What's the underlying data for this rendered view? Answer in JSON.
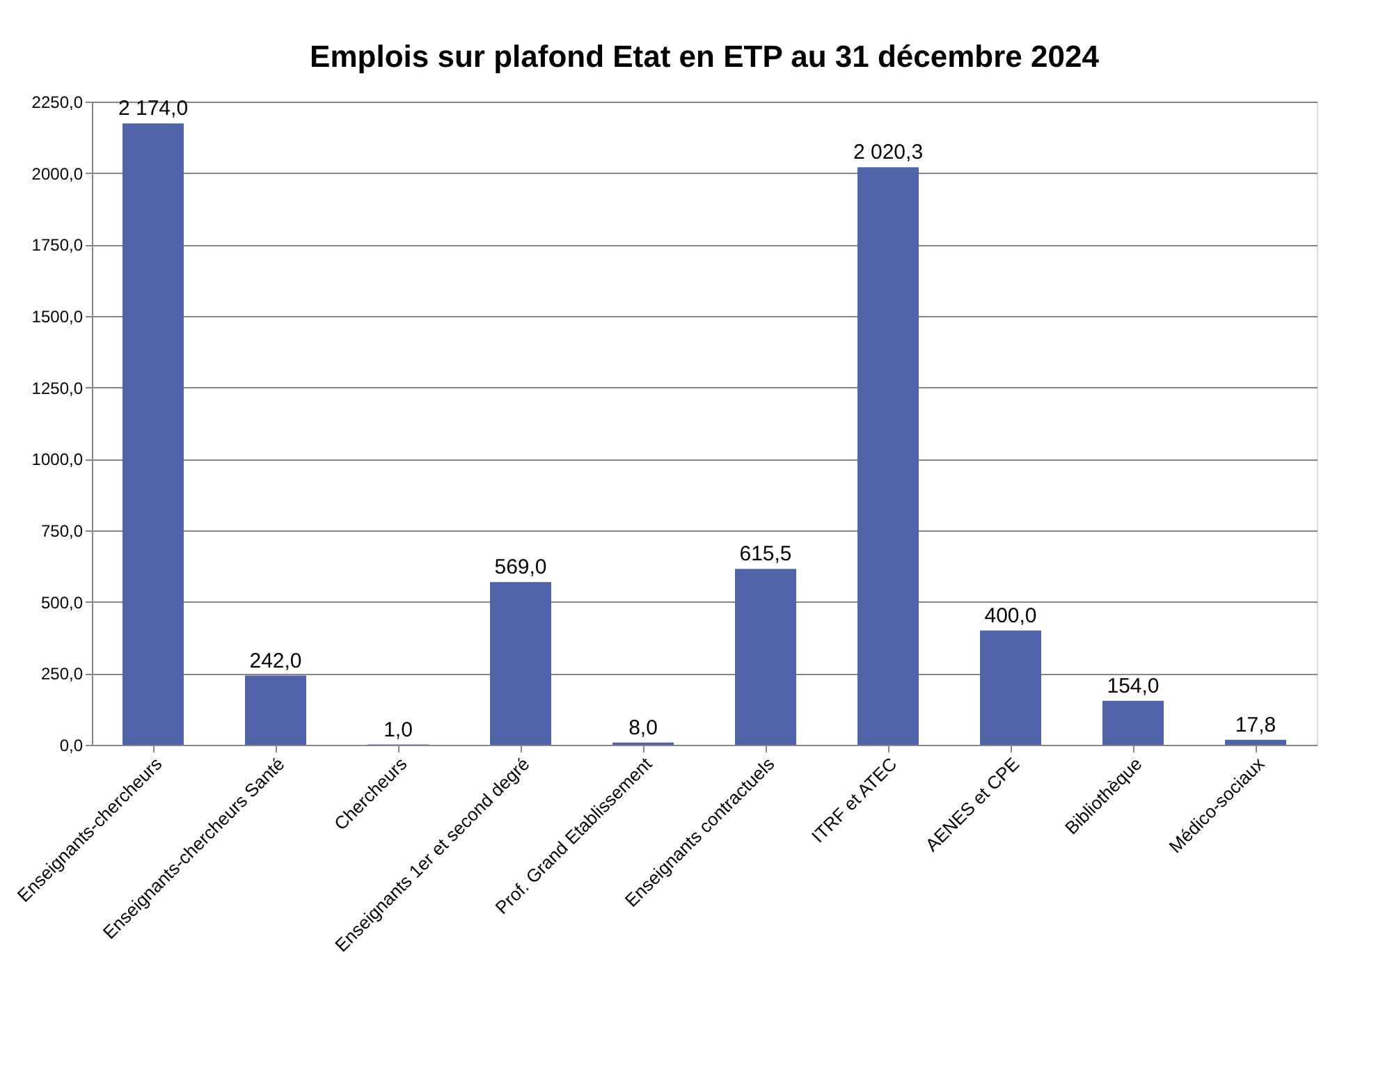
{
  "chart_data": {
    "type": "bar",
    "title": "Emplois sur plafond Etat en ETP au 31 décembre 2024",
    "categories": [
      "Enseignants-chercheurs",
      "Enseignants-chercheurs Santé",
      "Chercheurs",
      "Enseignants 1er et second degré",
      "Prof. Grand Etablissement",
      "Enseignants contractuels",
      "ITRF et ATEC",
      "AENES et CPE",
      "Bibliothèque",
      "Médico-sociaux"
    ],
    "values": [
      2174.0,
      242.0,
      1.0,
      569.0,
      8.0,
      615.5,
      2020.3,
      400.0,
      154.0,
      17.8
    ],
    "value_labels": [
      "2 174,0",
      "242,0",
      "1,0",
      "569,0",
      "8,0",
      "615,5",
      "2 020,3",
      "400,0",
      "154,0",
      "17,8"
    ],
    "color": "#4f63a9",
    "ylim": [
      0,
      2250
    ],
    "yticks": [
      {
        "value": 0,
        "label": "0,0"
      },
      {
        "value": 250,
        "label": "250,0"
      },
      {
        "value": 500,
        "label": "500,0"
      },
      {
        "value": 750,
        "label": "750,0"
      },
      {
        "value": 1000,
        "label": "1000,0"
      },
      {
        "value": 1250,
        "label": "1250,0"
      },
      {
        "value": 1500,
        "label": "1500,0"
      },
      {
        "value": 1750,
        "label": "1750,0"
      },
      {
        "value": 2000,
        "label": "2000,0"
      },
      {
        "value": 2250,
        "label": "2250,0"
      }
    ],
    "grid": "y"
  }
}
